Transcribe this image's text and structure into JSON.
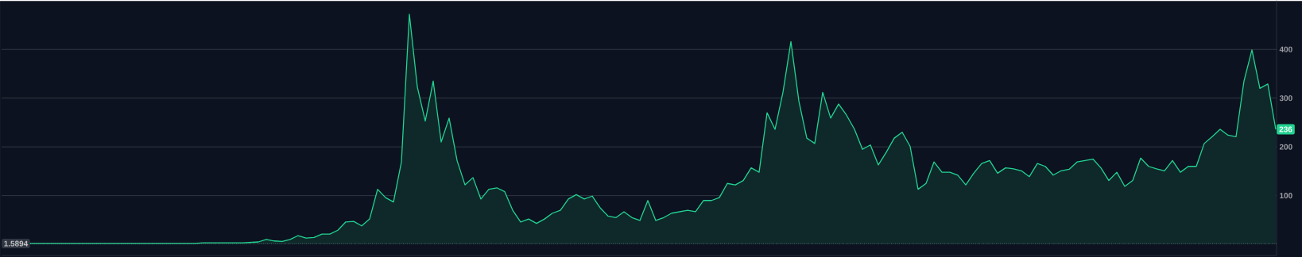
{
  "chart_data": {
    "type": "area",
    "categories": [
      null,
      null,
      null,
      null,
      null,
      null,
      null,
      null,
      null,
      null,
      null,
      null,
      null,
      null,
      null,
      null,
      null,
      null,
      null,
      null,
      null,
      null,
      null,
      null,
      null,
      null,
      null,
      null,
      null,
      null,
      null,
      null,
      null,
      null,
      null,
      null,
      null,
      null,
      null,
      null,
      null,
      null,
      null,
      null,
      null,
      null,
      null,
      null,
      null,
      null,
      null,
      null,
      null,
      null,
      null,
      null,
      null,
      null,
      null,
      null,
      null,
      null,
      null,
      null,
      null,
      null,
      null,
      null,
      null,
      null,
      null,
      null,
      null,
      null,
      null,
      null,
      null,
      null,
      null,
      null,
      null,
      null,
      null,
      null,
      null,
      null,
      null,
      null,
      null,
      null,
      null,
      null,
      null,
      null,
      null,
      null,
      null,
      null,
      null,
      null,
      null,
      null,
      null,
      null,
      null,
      null,
      null,
      null,
      null,
      null,
      null,
      null,
      null,
      null,
      null,
      null,
      null,
      null,
      null,
      null,
      null,
      null,
      null,
      null,
      null,
      null,
      null,
      null,
      null,
      null,
      null,
      null,
      null,
      null,
      null,
      null,
      null,
      null,
      null,
      null,
      null,
      null,
      null,
      null,
      null,
      null,
      null,
      null,
      null,
      null,
      null,
      null,
      null,
      null,
      null,
      null,
      null,
      null,
      null,
      null,
      null
    ],
    "values": [
      2,
      2,
      2,
      2,
      2,
      2,
      2,
      2,
      2,
      2,
      2,
      2,
      2,
      2,
      2,
      2,
      2,
      2,
      2,
      2,
      2,
      2,
      2,
      2,
      2,
      3,
      3,
      3,
      3,
      3,
      3,
      4,
      5,
      10,
      7,
      6,
      10,
      18,
      13,
      14,
      21,
      21,
      29,
      46,
      47,
      38,
      52,
      113,
      96,
      87,
      169,
      472,
      323,
      253,
      335,
      210,
      259,
      172,
      122,
      137,
      93,
      113,
      116,
      108,
      70,
      46,
      52,
      43,
      52,
      64,
      70,
      93,
      102,
      93,
      99,
      75,
      58,
      55,
      67,
      55,
      49,
      90,
      49,
      55,
      64,
      67,
      70,
      67,
      90,
      90,
      96,
      125,
      122,
      131,
      157,
      148,
      270,
      236,
      312,
      416,
      294,
      218,
      207,
      312,
      259,
      288,
      265,
      236,
      195,
      204,
      163,
      189,
      218,
      230,
      201,
      113,
      125,
      169,
      148,
      148,
      142,
      122,
      146,
      166,
      172,
      146,
      157,
      155,
      151,
      139,
      166,
      160,
      142,
      151,
      154,
      169,
      172,
      175,
      157,
      131,
      148,
      119,
      131,
      177,
      160,
      155,
      151,
      172,
      148,
      160,
      160,
      207,
      221,
      236,
      224,
      221,
      335,
      399,
      320,
      329,
      236
    ],
    "value_labels": [
      null,
      null,
      null,
      null,
      null,
      null,
      null,
      null,
      null,
      null,
      null,
      null,
      null,
      null,
      null,
      null,
      null,
      null,
      null,
      null,
      null,
      null,
      null,
      null,
      null,
      null,
      null,
      null,
      null,
      null,
      null,
      null,
      null,
      null,
      null,
      null,
      null,
      null,
      null,
      null,
      null,
      null,
      null,
      null,
      null,
      null,
      null,
      null,
      null,
      null,
      null,
      null,
      null,
      null,
      null,
      null,
      null,
      null,
      null,
      null,
      null,
      null,
      null,
      null,
      null,
      null,
      null,
      null,
      null,
      null,
      null,
      null,
      null,
      null,
      null,
      null,
      null,
      null,
      null,
      null,
      null,
      null,
      null,
      null,
      null,
      null,
      null,
      null,
      null,
      null,
      null,
      null,
      null,
      null,
      null,
      null,
      null,
      null,
      null,
      null,
      null,
      null,
      null,
      null,
      null,
      null,
      null,
      null,
      null,
      null,
      null,
      null,
      null,
      null,
      null,
      null,
      null,
      null,
      null,
      null,
      null,
      null,
      null,
      null,
      null,
      null,
      null,
      null,
      null,
      null,
      null,
      null,
      null,
      null,
      null,
      null,
      null,
      null,
      null,
      null,
      null,
      null,
      null,
      null,
      null,
      null,
      null,
      null,
      null,
      null,
      null,
      null,
      null,
      null,
      null,
      null,
      null,
      null,
      null,
      null,
      "236"
    ],
    "color": "#22d391",
    "ylim": [
      -23,
      501
    ],
    "yticks": [
      100,
      200,
      300,
      400
    ],
    "grid": "y",
    "tick_labels": "y",
    "ref_lines": [
      {
        "axis": "y",
        "value": 1.5894,
        "label": "1.5894",
        "line_style": "dotted",
        "color": "#c8ccd4"
      }
    ]
  }
}
